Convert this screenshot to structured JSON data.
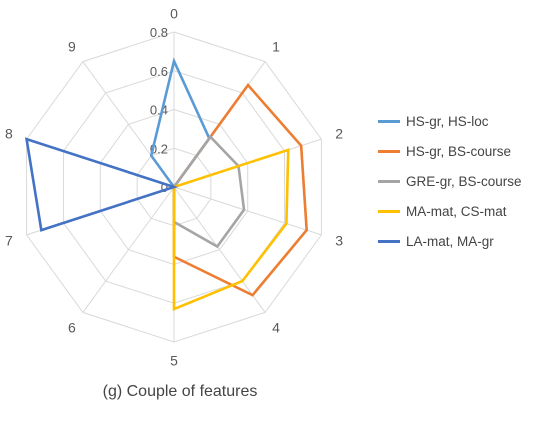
{
  "chart_data": {
    "type": "radar",
    "categories": [
      "0",
      "1",
      "2",
      "3",
      "4",
      "5",
      "6",
      "7",
      "8",
      "9"
    ],
    "radial_ticks": [
      0,
      0.2,
      0.4,
      0.6,
      0.8
    ],
    "rlim": [
      0,
      0.8
    ],
    "grid": true,
    "legend_position": "right",
    "caption": "(g) Couple of features",
    "series": [
      {
        "name": "HS-gr, HS-loc",
        "color": "#5B9BD5",
        "values": [
          0.65,
          0.31,
          0,
          0,
          0,
          0,
          0,
          0,
          0,
          0.2
        ]
      },
      {
        "name": "HS-gr, BS-course",
        "color": "#ED7D31",
        "values": [
          0,
          0.65,
          0.69,
          0.72,
          0.69,
          0.36,
          0,
          0,
          0,
          0
        ]
      },
      {
        "name": "GRE-gr, BS-course",
        "color": "#A5A5A5",
        "values": [
          0,
          0.32,
          0.35,
          0.38,
          0.38,
          0.18,
          0,
          0,
          0,
          0
        ]
      },
      {
        "name": "MA-mat, CS-mat",
        "color": "#FFC000",
        "values": [
          0,
          0,
          0.62,
          0.61,
          0.6,
          0.63,
          0,
          0,
          0,
          0
        ]
      },
      {
        "name": "LA-mat, MA-gr",
        "color": "#4472C4",
        "values": [
          0,
          0,
          0,
          0,
          0,
          0,
          0,
          0.72,
          0.8,
          0
        ]
      }
    ]
  }
}
